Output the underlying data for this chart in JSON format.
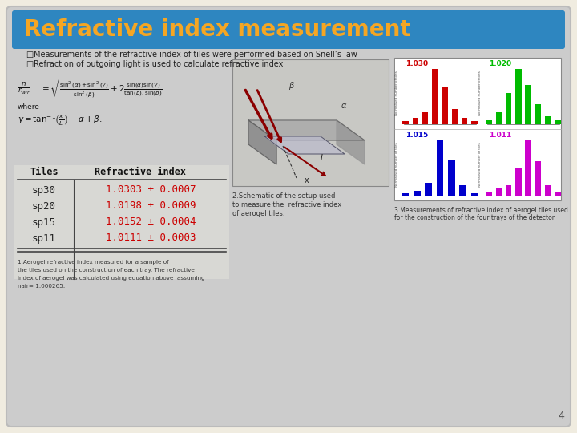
{
  "title": "Refractive index measurement",
  "title_bg_color": "#2e86c0",
  "title_text_color": "#f5a623",
  "slide_bg_color": "#f0ece0",
  "content_bg_color": "#cccccc",
  "bullet1": "Measurements of the refractive index of tiles were performed based on Snell’s law",
  "bullet2": "Refraction of outgoing light is used to calculate refractive index",
  "table_header_tiles": "Tiles",
  "table_header_ri": "Refractive index",
  "table_data": [
    [
      "sp30",
      "1.0303 ± 0.0007"
    ],
    [
      "sp20",
      "1.0198 ± 0.0009"
    ],
    [
      "sp15",
      "1.0152 ± 0.0004"
    ],
    [
      "sp11",
      "1.0111 ± 0.0003"
    ]
  ],
  "table_text_color_tiles": "#222222",
  "table_text_color_ri": "#cc0000",
  "footnote1": "1.Aerogel refractive index measured for a sample of",
  "footnote2": "the tiles used on the construction of each tray. The refractive",
  "footnote3": "index of aerogel was calculated using equation above  assuming",
  "footnote4": "nair= 1.000265.",
  "caption2_line1": "2.Schematic of the setup used",
  "caption2_line2": "to measure the  refractive index",
  "caption2_line3": "of aerogel tiles.",
  "caption3_line1": "3.Measurements of refractive index of aerogel tiles used",
  "caption3_line2": "for the construction of the four trays of the detector",
  "page_number": "4",
  "histogram_labels": [
    "1.030",
    "1.020",
    "1.015",
    "1.011"
  ],
  "histogram_colors": [
    "#cc0000",
    "#00bb00",
    "#0000cc",
    "#cc00cc"
  ]
}
